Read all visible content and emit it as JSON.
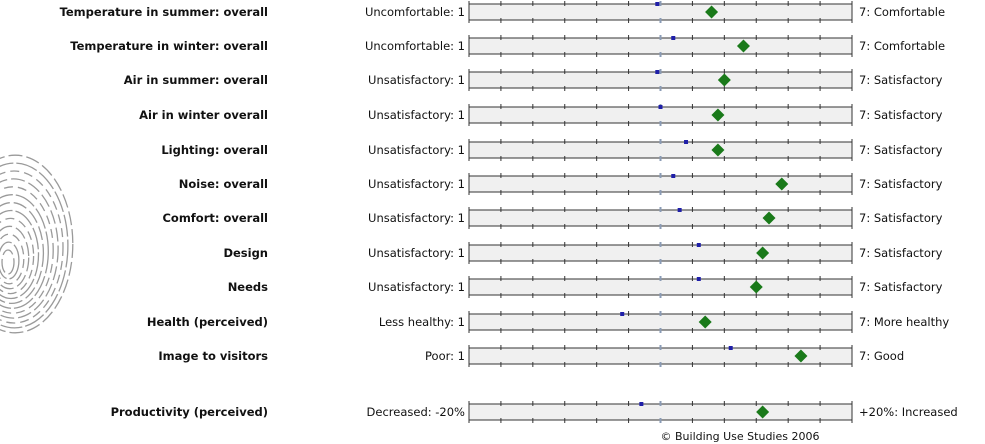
{
  "credit": "© Building Use Studies 2006",
  "colors": {
    "bar_fill": "#f0f0f0",
    "bar_stroke": "#333333",
    "benchmark_marker": "#1f1fa8",
    "score_marker": "#1a7a1a",
    "midline": "#8a9bb5"
  },
  "chart_data": {
    "type": "scatter",
    "xlim": [
      1,
      7
    ],
    "grid": false,
    "series": [],
    "rows": [
      {
        "label": "Temperature in summer: overall",
        "left": "Uncomfortable: 1",
        "right": "7: Comfortable",
        "benchmark": 3.95,
        "score": 4.8
      },
      {
        "label": "Temperature in winter: overall",
        "left": "Uncomfortable: 1",
        "right": "7: Comfortable",
        "benchmark": 4.2,
        "score": 5.3
      },
      {
        "label": "Air in summer: overall",
        "left": "Unsatisfactory: 1",
        "right": "7: Satisfactory",
        "benchmark": 3.95,
        "score": 5.0
      },
      {
        "label": "Air in winter overall",
        "left": "Unsatisfactory: 1",
        "right": "7: Satisfactory",
        "benchmark": 4.0,
        "score": 4.9
      },
      {
        "label": "Lighting: overall",
        "left": "Unsatisfactory: 1",
        "right": "7: Satisfactory",
        "benchmark": 4.4,
        "score": 4.9
      },
      {
        "label": "Noise: overall",
        "left": "Unsatisfactory: 1",
        "right": "7: Satisfactory",
        "benchmark": 4.2,
        "score": 5.9
      },
      {
        "label": "Comfort: overall",
        "left": "Unsatisfactory: 1",
        "right": "7: Satisfactory",
        "benchmark": 4.3,
        "score": 5.7
      },
      {
        "label": "Design",
        "left": "Unsatisfactory: 1",
        "right": "7: Satisfactory",
        "benchmark": 4.6,
        "score": 5.6
      },
      {
        "label": "Needs",
        "left": "Unsatisfactory: 1",
        "right": "7: Satisfactory",
        "benchmark": 4.6,
        "score": 5.5
      },
      {
        "label": "Health (perceived)",
        "left": "Less healthy: 1",
        "right": "7: More healthy",
        "benchmark": 3.4,
        "score": 4.7
      },
      {
        "label": "Image to visitors",
        "left": "Poor: 1",
        "right": "7: Good",
        "benchmark": 5.1,
        "score": 6.2
      },
      {
        "label": "Productivity (perceived)",
        "left": "Decreased: -20%",
        "right": "+20%: Increased",
        "benchmark": 3.7,
        "score": 5.6
      }
    ]
  }
}
